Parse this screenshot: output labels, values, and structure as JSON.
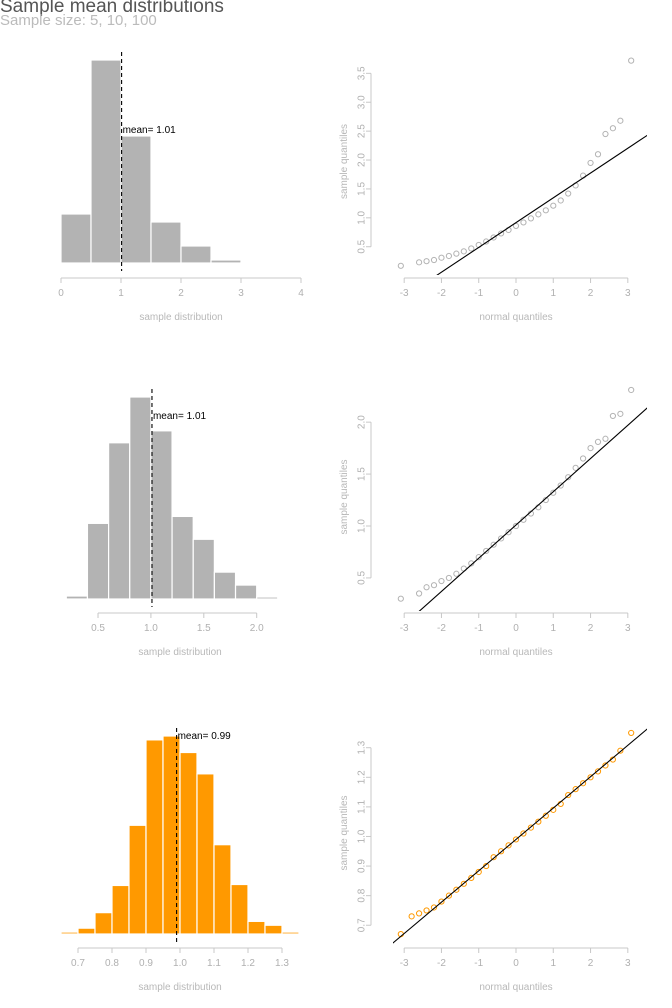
{
  "title": "Sample mean distributions",
  "subtitle": "Sample size: 5, 10, 100",
  "chart_data": [
    {
      "type": "bar",
      "xlabel": "sample distribution",
      "xlim": [
        0,
        4
      ],
      "xticks": [
        "0",
        "1",
        "2",
        "3",
        "4"
      ],
      "bin_edges": [
        0,
        0.5,
        1,
        1.5,
        2,
        2.5,
        3,
        3.5,
        4
      ],
      "values": [
        49,
        203,
        127,
        41,
        17,
        3,
        0,
        1
      ],
      "mean": 1.01,
      "mean_label": "mean= 1.01",
      "color": "#b3b3b3"
    },
    {
      "type": "scatter",
      "xlabel": "normal quantiles",
      "ylabel": "sample quantiles",
      "xlim": [
        -3.3,
        3.3
      ],
      "ylim": [
        0.08,
        3.8
      ],
      "xticks": [
        "-3",
        "-2",
        "-1",
        "0",
        "1",
        "2",
        "3"
      ],
      "yticks": [
        "0.5",
        "1.0",
        "1.5",
        "2.0",
        "2.5",
        "3.0",
        "3.5"
      ],
      "line": {
        "intercept": 0.917,
        "slope": 0.429
      },
      "points": [
        [
          -3.09,
          0.17
        ],
        [
          -2.6,
          0.23
        ],
        [
          -2.4,
          0.25
        ],
        [
          -2.2,
          0.27
        ],
        [
          -2.0,
          0.31
        ],
        [
          -1.8,
          0.34
        ],
        [
          -1.6,
          0.38
        ],
        [
          -1.4,
          0.42
        ],
        [
          -1.2,
          0.47
        ],
        [
          -1.0,
          0.53
        ],
        [
          -0.8,
          0.59
        ],
        [
          -0.6,
          0.66
        ],
        [
          -0.4,
          0.73
        ],
        [
          -0.2,
          0.79
        ],
        [
          0.0,
          0.86
        ],
        [
          0.2,
          0.92
        ],
        [
          0.4,
          0.99
        ],
        [
          0.6,
          1.06
        ],
        [
          0.8,
          1.13
        ],
        [
          1.0,
          1.21
        ],
        [
          1.2,
          1.3
        ],
        [
          1.4,
          1.42
        ],
        [
          1.6,
          1.56
        ],
        [
          1.8,
          1.73
        ],
        [
          2.0,
          1.95
        ],
        [
          2.2,
          2.1
        ],
        [
          2.4,
          2.45
        ],
        [
          2.6,
          2.55
        ],
        [
          2.8,
          2.68
        ],
        [
          3.09,
          3.72
        ]
      ],
      "color": "#b3b3b3"
    },
    {
      "type": "bar",
      "xlabel": "sample distribution",
      "xlim": [
        0.15,
        2.4
      ],
      "xticks": [
        "0.5",
        "1.0",
        "1.5",
        "2.0"
      ],
      "bin_edges": [
        0.2,
        0.4,
        0.6,
        0.8,
        1.0,
        1.2,
        1.4,
        1.6,
        1.8,
        2.0,
        2.2,
        2.4
      ],
      "values": [
        3,
        76,
        157,
        203,
        169,
        83,
        60,
        27,
        14,
        2,
        1
      ],
      "mean": 1.01,
      "mean_label": "mean= 1.01",
      "color": "#b3b3b3"
    },
    {
      "type": "scatter",
      "xlabel": "normal quantiles",
      "ylabel": "sample quantiles",
      "xlim": [
        -3.3,
        3.3
      ],
      "ylim": [
        0.22,
        2.3
      ],
      "xticks": [
        "-3",
        "-2",
        "-1",
        "0",
        "1",
        "2",
        "3"
      ],
      "yticks": [
        "0.5",
        "1.0",
        "1.5",
        "2.0"
      ],
      "line": {
        "intercept": 1.01,
        "slope": 0.32
      },
      "points": [
        [
          -3.09,
          0.3
        ],
        [
          -2.6,
          0.35
        ],
        [
          -2.4,
          0.41
        ],
        [
          -2.2,
          0.43
        ],
        [
          -2.0,
          0.47
        ],
        [
          -1.8,
          0.5
        ],
        [
          -1.6,
          0.54
        ],
        [
          -1.4,
          0.59
        ],
        [
          -1.2,
          0.64
        ],
        [
          -1.0,
          0.7
        ],
        [
          -0.8,
          0.76
        ],
        [
          -0.6,
          0.82
        ],
        [
          -0.4,
          0.88
        ],
        [
          -0.2,
          0.94
        ],
        [
          0.0,
          1.0
        ],
        [
          0.2,
          1.06
        ],
        [
          0.4,
          1.12
        ],
        [
          0.6,
          1.18
        ],
        [
          0.8,
          1.25
        ],
        [
          1.0,
          1.32
        ],
        [
          1.2,
          1.39
        ],
        [
          1.4,
          1.47
        ],
        [
          1.6,
          1.56
        ],
        [
          1.8,
          1.65
        ],
        [
          2.0,
          1.75
        ],
        [
          2.2,
          1.81
        ],
        [
          2.4,
          1.84
        ],
        [
          2.6,
          2.06
        ],
        [
          2.8,
          2.08
        ],
        [
          3.09,
          2.31
        ]
      ],
      "color": "#b3b3b3"
    },
    {
      "type": "bar",
      "xlabel": "sample distribution",
      "xlim": [
        0.65,
        1.35
      ],
      "xticks": [
        "0.7",
        "0.8",
        "0.9",
        "1.0",
        "1.1",
        "1.2",
        "1.3"
      ],
      "bin_edges": [
        0.65,
        0.7,
        0.75,
        0.8,
        0.85,
        0.9,
        0.95,
        1.0,
        1.05,
        1.1,
        1.15,
        1.2,
        1.25,
        1.3,
        1.35
      ],
      "values": [
        2,
        6,
        22,
        50,
        112,
        200,
        204,
        187,
        165,
        92,
        51,
        13,
        9,
        2
      ],
      "mean": 0.99,
      "mean_label": "mean= 0.99",
      "color": "#ff9900"
    },
    {
      "type": "scatter",
      "xlabel": "normal quantiles",
      "ylabel": "sample quantiles",
      "xlim": [
        -3.3,
        3.3
      ],
      "ylim": [
        0.64,
        1.37
      ],
      "xticks": [
        "-3",
        "-2",
        "-1",
        "0",
        "1",
        "2",
        "3"
      ],
      "yticks": [
        "0.7",
        "0.8",
        "0.9",
        "1.0",
        "1.1",
        "1.2",
        "1.3"
      ],
      "line": {
        "intercept": 0.99,
        "slope": 0.106
      },
      "points": [
        [
          -3.09,
          0.67
        ],
        [
          -2.8,
          0.73
        ],
        [
          -2.6,
          0.74
        ],
        [
          -2.4,
          0.75
        ],
        [
          -2.2,
          0.76
        ],
        [
          -2.0,
          0.78
        ],
        [
          -1.8,
          0.8
        ],
        [
          -1.6,
          0.82
        ],
        [
          -1.4,
          0.84
        ],
        [
          -1.2,
          0.86
        ],
        [
          -1.0,
          0.88
        ],
        [
          -0.8,
          0.9
        ],
        [
          -0.6,
          0.93
        ],
        [
          -0.4,
          0.95
        ],
        [
          -0.2,
          0.97
        ],
        [
          0.0,
          0.99
        ],
        [
          0.2,
          1.01
        ],
        [
          0.4,
          1.03
        ],
        [
          0.6,
          1.05
        ],
        [
          0.8,
          1.07
        ],
        [
          1.0,
          1.09
        ],
        [
          1.2,
          1.11
        ],
        [
          1.4,
          1.14
        ],
        [
          1.6,
          1.16
        ],
        [
          1.8,
          1.18
        ],
        [
          2.0,
          1.2
        ],
        [
          2.2,
          1.22
        ],
        [
          2.4,
          1.24
        ],
        [
          2.6,
          1.26
        ],
        [
          2.8,
          1.29
        ],
        [
          3.09,
          1.35
        ]
      ],
      "color": "#ff9900"
    }
  ]
}
